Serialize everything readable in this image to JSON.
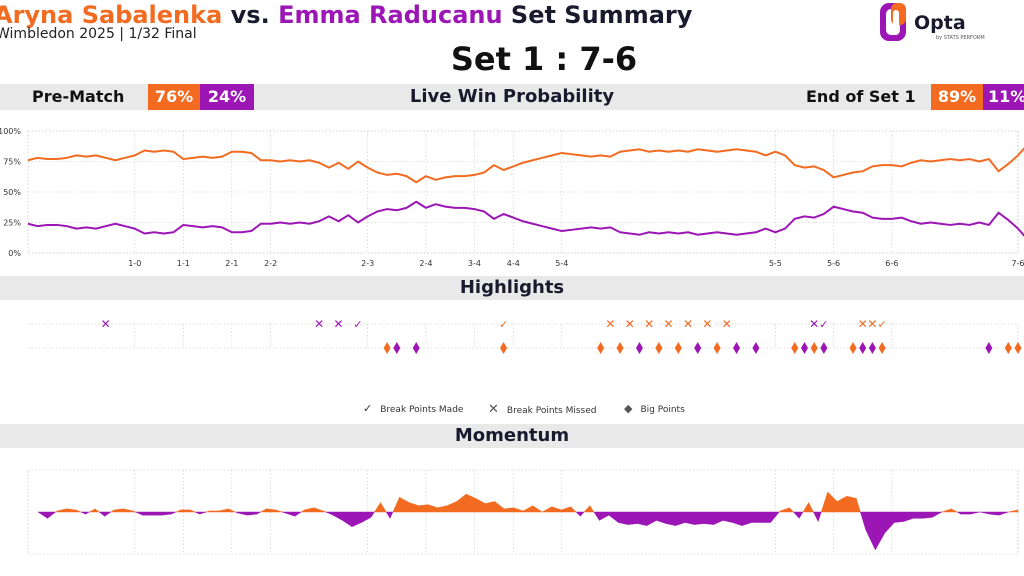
{
  "header": {
    "player1": "Aryna Sabalenka",
    "vs": " vs. ",
    "player2": "Emma Raducanu",
    "suffix": " Set Summary",
    "subtitle": "Wimbledon 2025 | 1/32 Final",
    "set_score": "Set 1 : 7-6",
    "logo_text": "Opta",
    "logo_sub": "by STATS PERFORM"
  },
  "colors": {
    "player1": "#f26b21",
    "player2": "#9b16b5"
  },
  "win_prob_bar": {
    "pre_match_label": "Pre-Match",
    "pre_p1": "76%",
    "pre_p2": "24%",
    "title": "Live Win Probability",
    "end_label": "End of Set 1",
    "end_p1": "89%",
    "end_p2": "11%"
  },
  "sections": {
    "highlights": "Highlights",
    "momentum": "Momentum"
  },
  "legend": {
    "break_made": "Break Points Made",
    "break_missed": "Break Points Missed",
    "big_points": "Big Points"
  },
  "chart_data": [
    {
      "type": "line",
      "title": "Live Win Probability",
      "ylim": [
        0,
        100
      ],
      "yticks": [
        "0%",
        "25%",
        "50%",
        "75%",
        "100%"
      ],
      "x_range": [
        0,
        102
      ],
      "score_labels": [
        {
          "x": 11,
          "label": "1-0"
        },
        {
          "x": 16,
          "label": "1-1"
        },
        {
          "x": 21,
          "label": "2-1"
        },
        {
          "x": 25,
          "label": "2-2"
        },
        {
          "x": 35,
          "label": "2-3"
        },
        {
          "x": 41,
          "label": "2-4"
        },
        {
          "x": 46,
          "label": "3-4"
        },
        {
          "x": 50,
          "label": "4-4"
        },
        {
          "x": 55,
          "label": "5-4"
        },
        {
          "x": 77,
          "label": "5-5"
        },
        {
          "x": 83,
          "label": "5-6"
        },
        {
          "x": 89,
          "label": "6-6"
        },
        {
          "x": 102,
          "label": "7-6"
        }
      ],
      "series": [
        {
          "name": "Aryna Sabalenka",
          "values": [
            76,
            78,
            77,
            77,
            78,
            80,
            79,
            80,
            78,
            76,
            78,
            80,
            84,
            83,
            84,
            83,
            77,
            78,
            79,
            78,
            79,
            83,
            83,
            82,
            76,
            76,
            75,
            76,
            75,
            76,
            74,
            70,
            74,
            69,
            75,
            70,
            66,
            64,
            65,
            63,
            58,
            63,
            60,
            62,
            63,
            63,
            64,
            66,
            72,
            68,
            71,
            74,
            76,
            78,
            80,
            82,
            81,
            80,
            79,
            80,
            79,
            83,
            84,
            85,
            83,
            84,
            83,
            84,
            83,
            85,
            84,
            83,
            84,
            85,
            84,
            83,
            80,
            83,
            80,
            72,
            70,
            71,
            68,
            62,
            64,
            66,
            67,
            71,
            72,
            72,
            71,
            74,
            76,
            75,
            76,
            77,
            76,
            77,
            75,
            77,
            67,
            73,
            80,
            89
          ]
        },
        {
          "name": "Emma Raducanu",
          "values": [
            24,
            22,
            23,
            23,
            22,
            20,
            21,
            20,
            22,
            24,
            22,
            20,
            16,
            17,
            16,
            17,
            23,
            22,
            21,
            22,
            21,
            17,
            17,
            18,
            24,
            24,
            25,
            24,
            25,
            24,
            26,
            30,
            26,
            31,
            25,
            30,
            34,
            36,
            35,
            37,
            42,
            37,
            40,
            38,
            37,
            37,
            36,
            34,
            28,
            32,
            29,
            26,
            24,
            22,
            20,
            18,
            19,
            20,
            21,
            20,
            21,
            17,
            16,
            15,
            17,
            16,
            17,
            16,
            17,
            15,
            16,
            17,
            16,
            15,
            16,
            17,
            20,
            17,
            20,
            28,
            30,
            29,
            32,
            38,
            36,
            34,
            33,
            29,
            28,
            28,
            29,
            26,
            24,
            25,
            24,
            23,
            24,
            23,
            25,
            23,
            33,
            27,
            20,
            11
          ]
        }
      ]
    },
    {
      "type": "scatter",
      "title": "Highlights",
      "rows": [
        "Break Points",
        "Big Points"
      ],
      "break_points": [
        {
          "x": 8,
          "player": "Emma Raducanu",
          "result": "missed"
        },
        {
          "x": 30,
          "player": "Emma Raducanu",
          "result": "missed"
        },
        {
          "x": 32,
          "player": "Emma Raducanu",
          "result": "missed"
        },
        {
          "x": 34,
          "player": "Emma Raducanu",
          "result": "made"
        },
        {
          "x": 49,
          "player": "Aryna Sabalenka",
          "result": "made"
        },
        {
          "x": 60,
          "player": "Aryna Sabalenka",
          "result": "missed"
        },
        {
          "x": 62,
          "player": "Aryna Sabalenka",
          "result": "missed"
        },
        {
          "x": 64,
          "player": "Aryna Sabalenka",
          "result": "missed"
        },
        {
          "x": 66,
          "player": "Aryna Sabalenka",
          "result": "missed"
        },
        {
          "x": 68,
          "player": "Aryna Sabalenka",
          "result": "missed"
        },
        {
          "x": 70,
          "player": "Aryna Sabalenka",
          "result": "missed"
        },
        {
          "x": 72,
          "player": "Aryna Sabalenka",
          "result": "missed"
        },
        {
          "x": 81,
          "player": "Emma Raducanu",
          "result": "missed"
        },
        {
          "x": 82,
          "player": "Emma Raducanu",
          "result": "made"
        },
        {
          "x": 86,
          "player": "Aryna Sabalenka",
          "result": "missed"
        },
        {
          "x": 87,
          "player": "Aryna Sabalenka",
          "result": "missed"
        },
        {
          "x": 88,
          "player": "Aryna Sabalenka",
          "result": "made"
        }
      ],
      "big_points": [
        {
          "x": 37,
          "player": "Aryna Sabalenka"
        },
        {
          "x": 38,
          "player": "Emma Raducanu"
        },
        {
          "x": 40,
          "player": "Emma Raducanu"
        },
        {
          "x": 49,
          "player": "Aryna Sabalenka"
        },
        {
          "x": 59,
          "player": "Aryna Sabalenka"
        },
        {
          "x": 61,
          "player": "Aryna Sabalenka"
        },
        {
          "x": 63,
          "player": "Emma Raducanu"
        },
        {
          "x": 65,
          "player": "Aryna Sabalenka"
        },
        {
          "x": 67,
          "player": "Aryna Sabalenka"
        },
        {
          "x": 69,
          "player": "Emma Raducanu"
        },
        {
          "x": 71,
          "player": "Aryna Sabalenka"
        },
        {
          "x": 73,
          "player": "Emma Raducanu"
        },
        {
          "x": 75,
          "player": "Emma Raducanu"
        },
        {
          "x": 79,
          "player": "Aryna Sabalenka"
        },
        {
          "x": 80,
          "player": "Emma Raducanu"
        },
        {
          "x": 81,
          "player": "Aryna Sabalenka"
        },
        {
          "x": 82,
          "player": "Emma Raducanu"
        },
        {
          "x": 85,
          "player": "Aryna Sabalenka"
        },
        {
          "x": 86,
          "player": "Emma Raducanu"
        },
        {
          "x": 87,
          "player": "Emma Raducanu"
        },
        {
          "x": 88,
          "player": "Aryna Sabalenka"
        },
        {
          "x": 99,
          "player": "Emma Raducanu"
        },
        {
          "x": 101,
          "player": "Aryna Sabalenka"
        },
        {
          "x": 102,
          "player": "Aryna Sabalenka"
        }
      ]
    },
    {
      "type": "area",
      "title": "Momentum",
      "ylim": [
        -40,
        40
      ],
      "values": [
        0,
        -6,
        1,
        3,
        2,
        -2,
        3,
        -4,
        2,
        3,
        1,
        -3,
        -3,
        -3,
        -2,
        2,
        2,
        -2,
        1,
        1,
        3,
        -1,
        -3,
        -2,
        3,
        2,
        -1,
        -4,
        2,
        4,
        1,
        -3,
        -8,
        -14,
        -10,
        -5,
        9,
        -6,
        14,
        9,
        6,
        7,
        4,
        6,
        10,
        17,
        13,
        8,
        10,
        3,
        4,
        1,
        6,
        0,
        5,
        2,
        5,
        -4,
        6,
        -8,
        -3,
        -10,
        -12,
        -11,
        -13,
        -8,
        -11,
        -13,
        -10,
        -12,
        -11,
        -12,
        -8,
        -10,
        -13,
        -10,
        -10,
        -10,
        1,
        4,
        -6,
        9,
        -9,
        19,
        10,
        15,
        13,
        -17,
        -36,
        -20,
        -10,
        -9,
        -6,
        -6,
        -5,
        0,
        3,
        -2,
        -2,
        0,
        -2,
        -3,
        0,
        2
      ]
    }
  ]
}
